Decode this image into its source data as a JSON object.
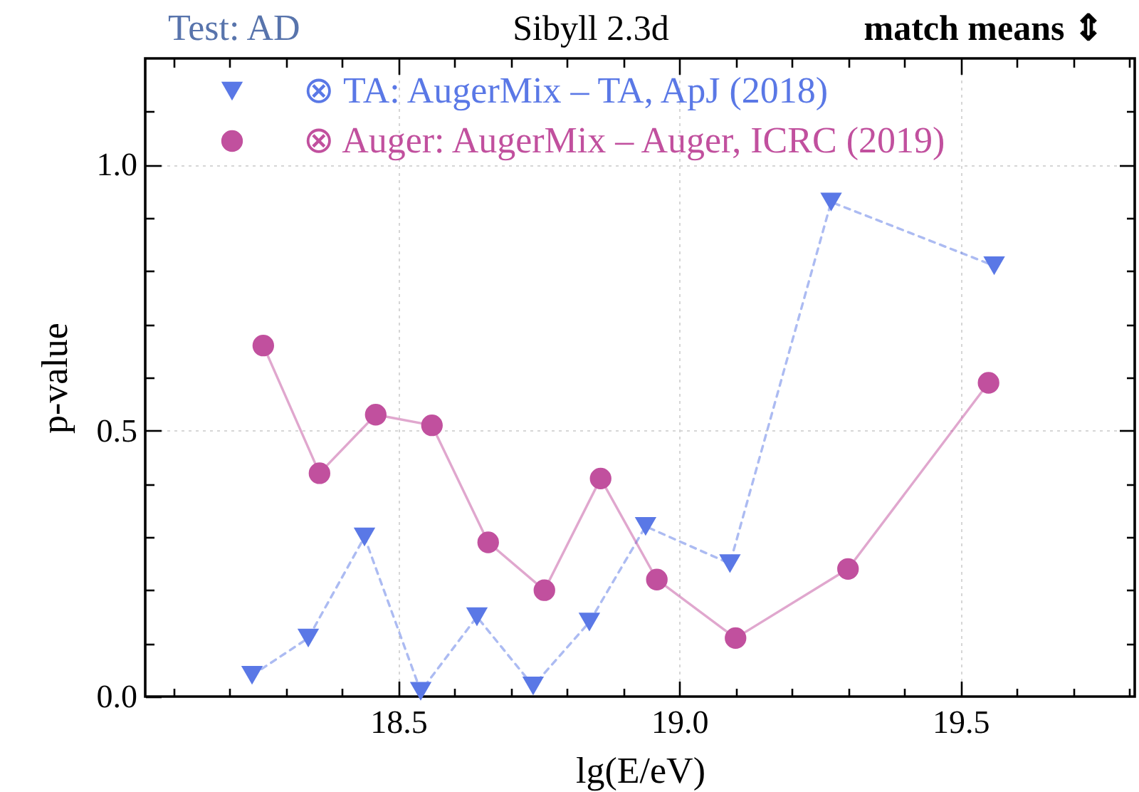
{
  "chart_data": {
    "type": "line",
    "title": "Sibyll 2.3d",
    "annotations": [
      "Test: AD",
      "match means ⇕"
    ],
    "xlabel": "lg(E/eV)",
    "ylabel": "p-value",
    "xlim": [
      18.05,
      19.81
    ],
    "ylim": [
      0,
      1.2
    ],
    "xticks": [
      {
        "value": 18.1,
        "label": null
      },
      {
        "value": 18.2,
        "label": null
      },
      {
        "value": 18.3,
        "label": null
      },
      {
        "value": 18.4,
        "label": null
      },
      {
        "value": 18.5,
        "label": "18.5"
      },
      {
        "value": 18.6,
        "label": null
      },
      {
        "value": 18.7,
        "label": null
      },
      {
        "value": 18.8,
        "label": null
      },
      {
        "value": 18.9,
        "label": null
      },
      {
        "value": 19,
        "label": "19.0"
      },
      {
        "value": 19.1,
        "label": null
      },
      {
        "value": 19.2,
        "label": null
      },
      {
        "value": 19.3,
        "label": null
      },
      {
        "value": 19.4,
        "label": null
      },
      {
        "value": 19.5,
        "label": "19.5"
      },
      {
        "value": 19.6,
        "label": null
      },
      {
        "value": 19.7,
        "label": null
      },
      {
        "value": 19.8,
        "label": null
      }
    ],
    "yticks": [
      {
        "value": 0,
        "label": "0.0"
      },
      {
        "value": 0.1,
        "label": null
      },
      {
        "value": 0.2,
        "label": null
      },
      {
        "value": 0.3,
        "label": null
      },
      {
        "value": 0.4,
        "label": null
      },
      {
        "value": 0.5,
        "label": "0.5"
      },
      {
        "value": 0.6,
        "label": null
      },
      {
        "value": 0.7,
        "label": null
      },
      {
        "value": 0.8,
        "label": null
      },
      {
        "value": 0.9,
        "label": null
      },
      {
        "value": 1,
        "label": "1.0"
      },
      {
        "value": 1.1,
        "label": null
      }
    ],
    "grid": true,
    "legend": "top left",
    "series": [
      {
        "name": "⊗ TA: AugerMix – TA, ApJ (2018)",
        "color": "#5a78e6",
        "marker": "triangle",
        "line_style": "dashed",
        "x": [
          18.24,
          18.34,
          18.44,
          18.54,
          18.64,
          18.74,
          18.84,
          18.94,
          19.09,
          19.27,
          19.56
        ],
        "values": [
          0.04,
          0.11,
          0.3,
          0.01,
          0.15,
          0.02,
          0.14,
          0.32,
          0.25,
          0.93,
          0.81
        ]
      },
      {
        "name": "⊗ Auger: AugerMix – Auger, ICRC (2019)",
        "color": "#c1509e",
        "marker": "circle",
        "line_style": "solid",
        "x": [
          18.26,
          18.36,
          18.46,
          18.56,
          18.66,
          18.76,
          18.86,
          18.96,
          19.1,
          19.3,
          19.55
        ],
        "values": [
          0.66,
          0.42,
          0.53,
          0.51,
          0.29,
          0.2,
          0.41,
          0.22,
          0.11,
          0.24,
          0.59
        ]
      }
    ]
  }
}
